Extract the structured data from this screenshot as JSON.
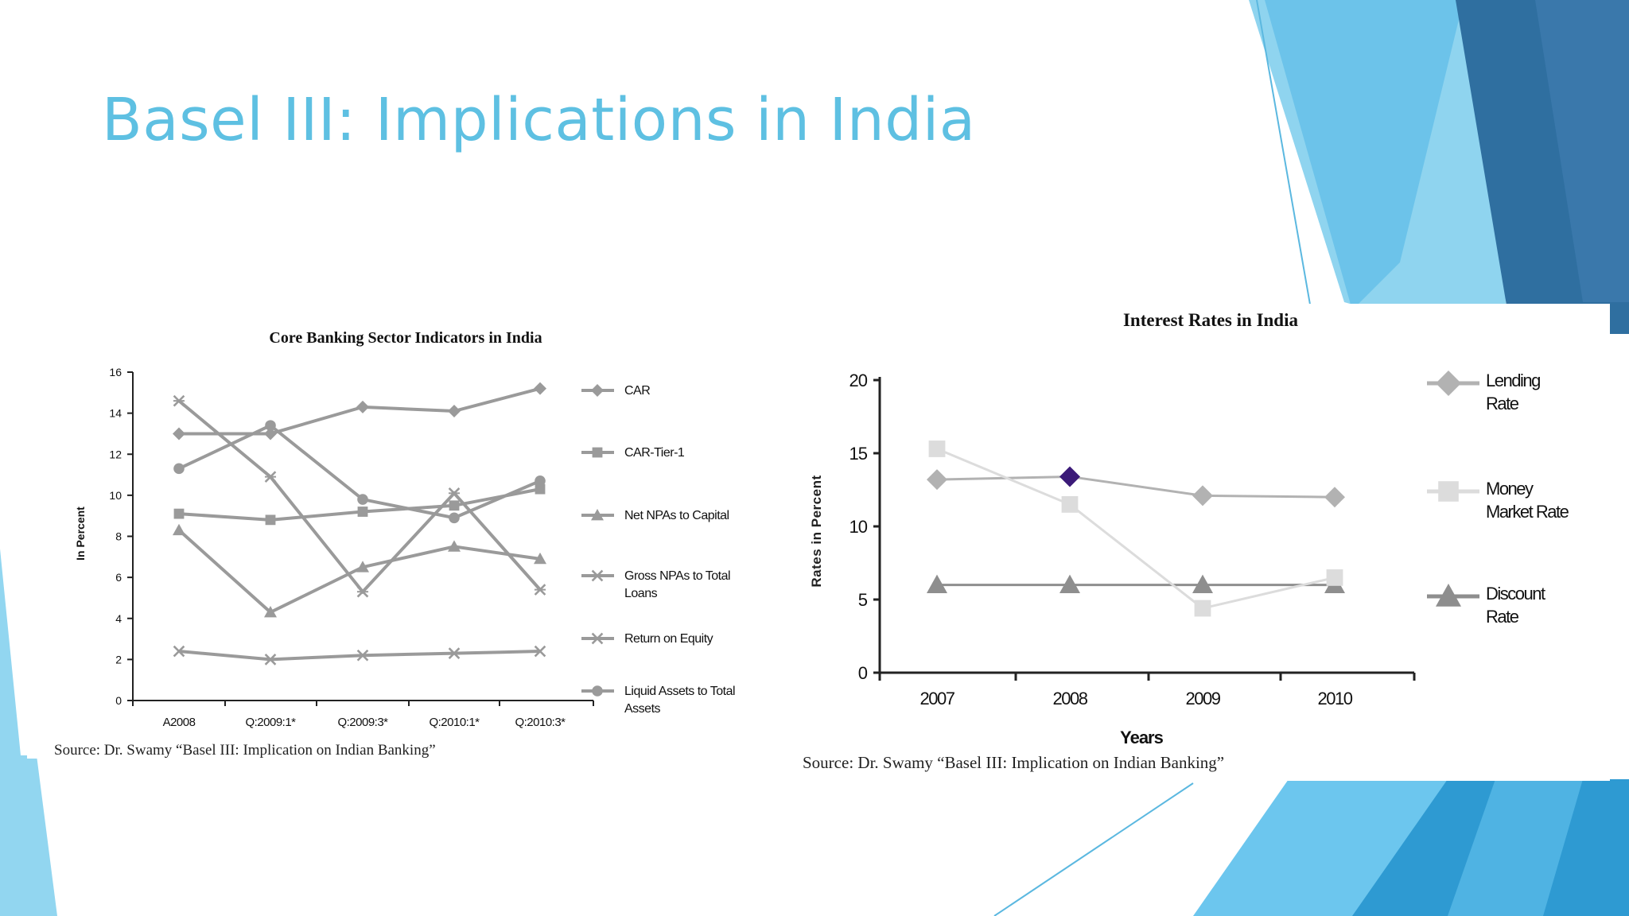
{
  "slide": {
    "title": "Basel III: Implications in India",
    "colors": {
      "title": "#5ec0e2",
      "accent_dark": "#2f6fa0",
      "accent_light": "#7ed0f0"
    }
  },
  "chart_data": [
    {
      "type": "line",
      "title": "Core Banking Sector Indicators in India",
      "xlabel": "",
      "ylabel": "In Percent",
      "ylim": [
        0,
        16
      ],
      "yticks": [
        0,
        2,
        4,
        6,
        8,
        10,
        12,
        14,
        16
      ],
      "categories": [
        "A2008",
        "Q:2009:1*",
        "Q:2009:3*",
        "Q:2010:1*",
        "Q:2010:3*"
      ],
      "legend_position": "right",
      "grid": false,
      "series": [
        {
          "name": "CAR",
          "marker": "diamond",
          "values": [
            13.0,
            13.0,
            14.3,
            14.1,
            15.2
          ]
        },
        {
          "name": "CAR-Tier-1",
          "marker": "square",
          "values": [
            9.1,
            8.8,
            9.2,
            9.5,
            10.3
          ]
        },
        {
          "name": "Net NPAs to Capital",
          "marker": "triangle",
          "values": [
            8.3,
            4.3,
            6.5,
            7.5,
            6.9
          ]
        },
        {
          "name": "Gross NPAs to Total Loans",
          "marker": "x",
          "values": [
            2.4,
            2.0,
            2.2,
            2.3,
            2.4
          ]
        },
        {
          "name": "Return on Equity",
          "marker": "xbar",
          "values": [
            14.6,
            10.9,
            5.3,
            10.1,
            5.4
          ]
        },
        {
          "name": "Liquid Assets to Total Assets",
          "marker": "circle",
          "values": [
            11.3,
            13.4,
            9.8,
            8.9,
            10.7
          ]
        }
      ],
      "source": "Source: Dr. Swamy “Basel III: Implication on Indian Banking”"
    },
    {
      "type": "line",
      "title": "Interest Rates in India",
      "xlabel": "Years",
      "ylabel": "Rates in Percent",
      "ylim": [
        0,
        20
      ],
      "yticks": [
        0,
        5,
        10,
        15,
        20
      ],
      "categories": [
        "2007",
        "2008",
        "2009",
        "2010"
      ],
      "legend_position": "right",
      "grid": false,
      "highlight": {
        "series": "Lending Rate",
        "index": 1,
        "color": "#3b1a78"
      },
      "series": [
        {
          "name": "Lending Rate",
          "marker": "diamond",
          "color": "#b2b2b2",
          "values": [
            13.2,
            13.4,
            12.1,
            12.0
          ]
        },
        {
          "name": "Money Market Rate",
          "marker": "square",
          "color": "#dcdcdc",
          "values": [
            15.3,
            11.5,
            4.4,
            6.5
          ]
        },
        {
          "name": "Discount Rate",
          "marker": "triangle",
          "color": "#8e8e8e",
          "values": [
            6.0,
            6.0,
            6.0,
            6.0
          ]
        }
      ],
      "source": "Source: Dr. Swamy “Basel III: Implication on Indian Banking”"
    }
  ]
}
